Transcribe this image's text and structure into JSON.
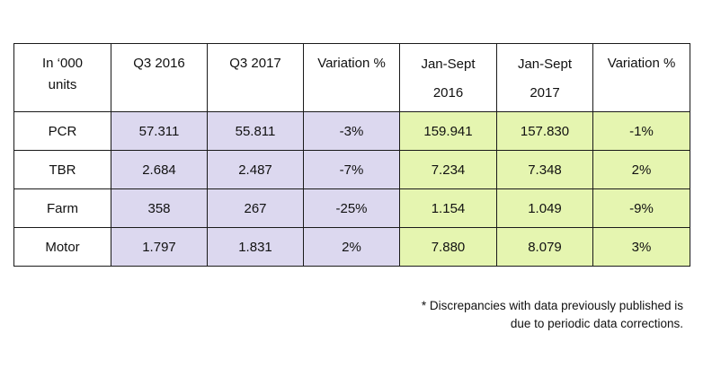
{
  "table": {
    "headers": [
      {
        "lines": [
          "In ‘000",
          "units"
        ]
      },
      {
        "lines": [
          "Q3 2016"
        ]
      },
      {
        "lines": [
          "Q3 2017"
        ]
      },
      {
        "lines": [
          "Variation %"
        ]
      },
      {
        "lines": [
          "Jan-Sept",
          "2016"
        ]
      },
      {
        "lines": [
          "Jan-Sept",
          "2017"
        ]
      },
      {
        "lines": [
          "Variation %"
        ]
      }
    ],
    "rows": [
      {
        "label": "PCR",
        "cells": [
          "57.311",
          "55.811",
          "-3%",
          "159.941",
          "157.830",
          "-1%"
        ]
      },
      {
        "label": "TBR",
        "cells": [
          "2.684",
          "2.487",
          "-7%",
          "7.234",
          "7.348",
          "2%"
        ]
      },
      {
        "label": "Farm",
        "cells": [
          "358",
          "267",
          "-25%",
          "1.154",
          "1.049",
          "-9%"
        ]
      },
      {
        "label": "Motor",
        "cells": [
          "1.797",
          "1.831",
          "2%",
          "7.880",
          "8.079",
          "3%"
        ]
      }
    ]
  },
  "colors": {
    "quarter_cells": "#dcd8ef",
    "ytd_cells": "#e5f5b0"
  },
  "footnote": {
    "line1": "* Discrepancies with data previously published is",
    "line2": "due to periodic data corrections."
  }
}
